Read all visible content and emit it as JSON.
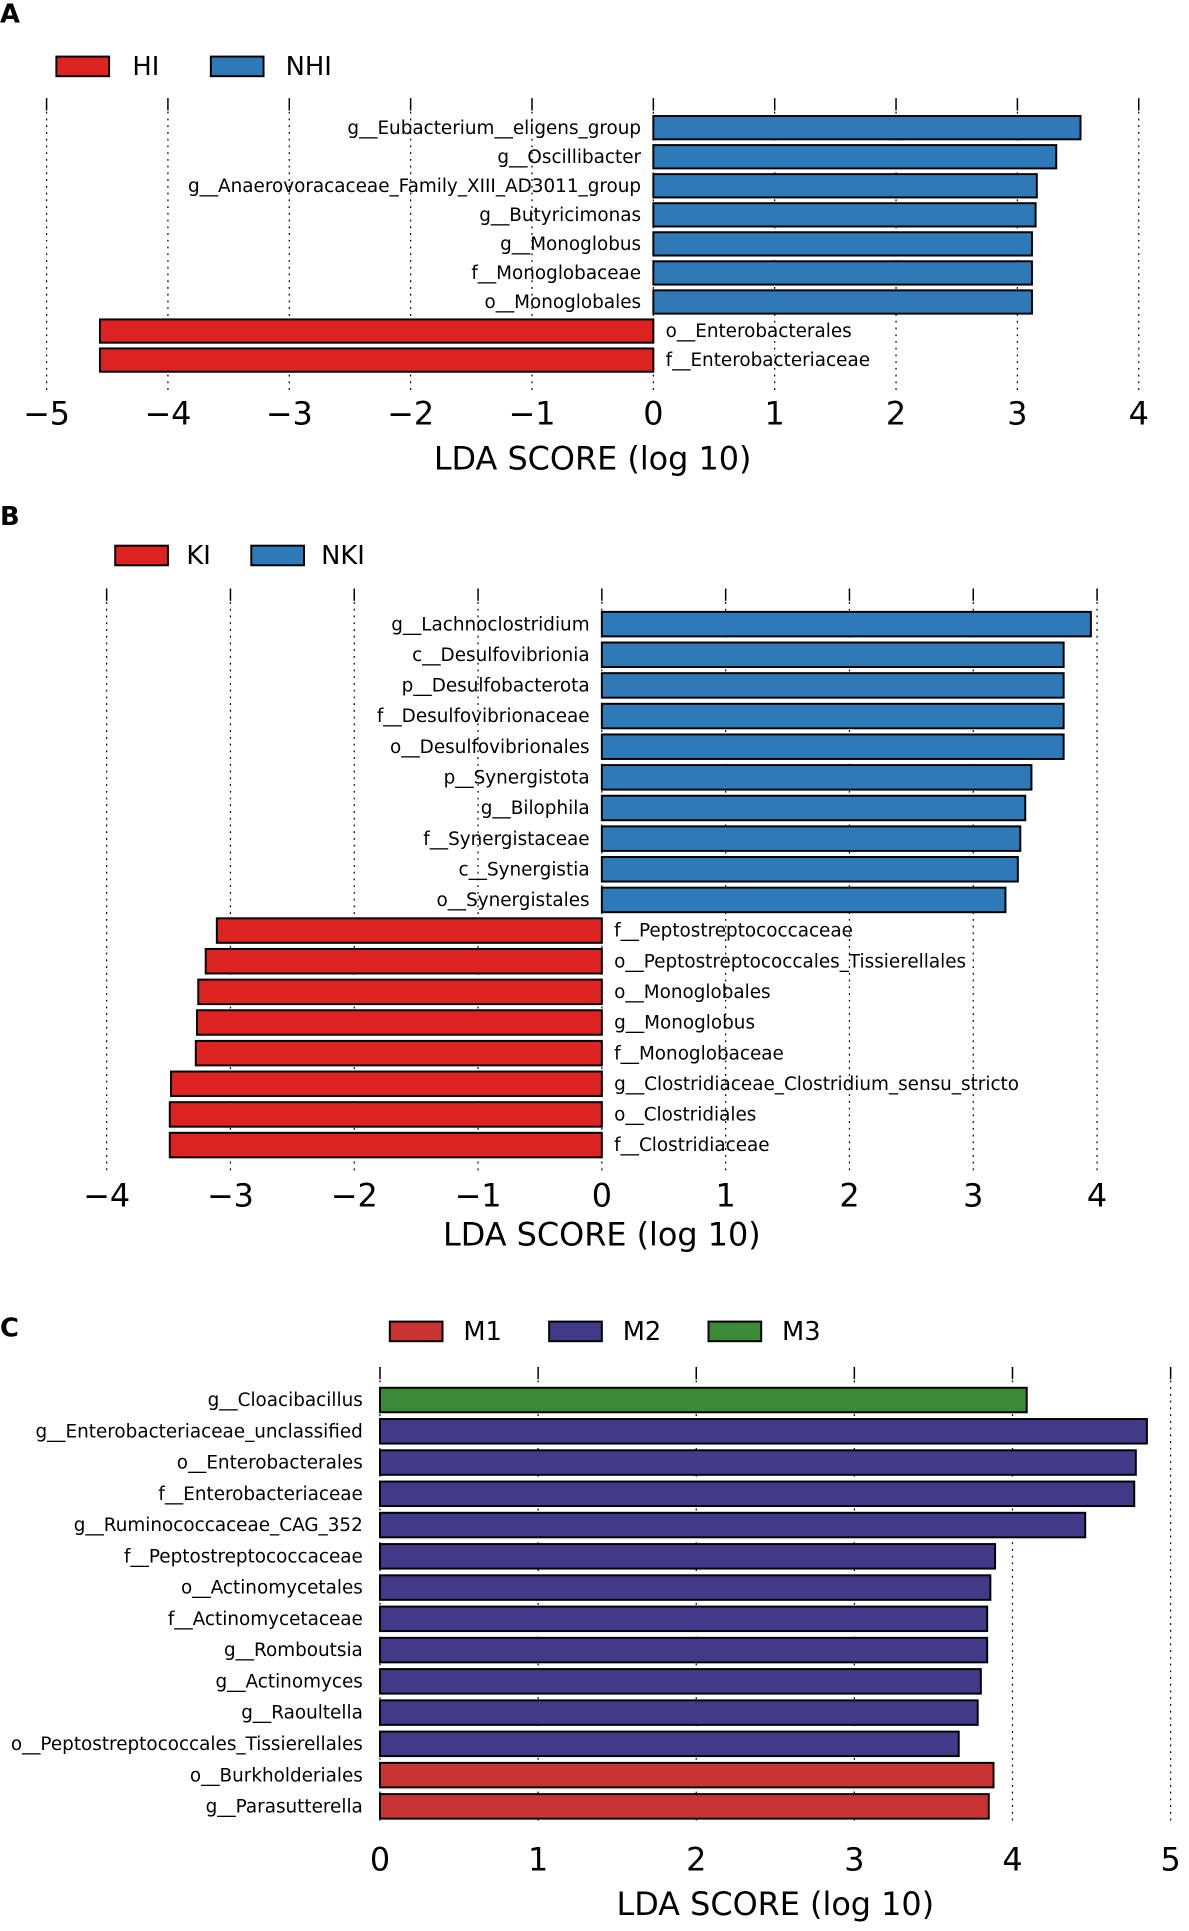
{
  "chart_data": [
    {
      "type": "bar",
      "orientation": "horizontal",
      "panel": "A",
      "xlabel": "LDA SCORE (log 10)",
      "xlim": [
        -5,
        4
      ],
      "xticks": [
        "−5",
        "−4",
        "−3",
        "−2",
        "−1",
        "0",
        "1",
        "2",
        "3",
        "4"
      ],
      "grid": true,
      "legend_position": "top-left",
      "legend": [
        {
          "name": "HI",
          "color": "#dd2222"
        },
        {
          "name": "NHI",
          "color": "#2e7ab8"
        }
      ],
      "categories": [
        "g__Eubacterium__eligens_group",
        "g__Oscillibacter",
        "g__Anaerovoracaceae_Family_XIII_AD3011_group",
        "g__Butyricimonas",
        "g__Monoglobus",
        "f__Monoglobaceae",
        "o__Monoglobales",
        "o__Enterobacterales",
        "f__Enterobacteriaceae"
      ],
      "values": [
        3.52,
        3.32,
        3.16,
        3.15,
        3.12,
        3.12,
        3.12,
        -4.56,
        -4.56
      ],
      "groups": [
        "NHI",
        "NHI",
        "NHI",
        "NHI",
        "NHI",
        "NHI",
        "NHI",
        "HI",
        "HI"
      ]
    },
    {
      "type": "bar",
      "orientation": "horizontal",
      "panel": "B",
      "xlabel": "LDA SCORE (log 10)",
      "xlim": [
        -4,
        4
      ],
      "xticks": [
        "−4",
        "−3",
        "−2",
        "−1",
        "0",
        "1",
        "2",
        "3",
        "4"
      ],
      "grid": true,
      "legend_position": "top-left",
      "legend": [
        {
          "name": "KI",
          "color": "#dd2222"
        },
        {
          "name": "NKI",
          "color": "#2e7ab8"
        }
      ],
      "categories": [
        "g__Lachnoclostridium",
        "c__Desulfovibrionia",
        "p__Desulfobacterota",
        "f__Desulfovibrionaceae",
        "o__Desulfovibrionales",
        "p__Synergistota",
        "g__Bilophila",
        "f__Synergistaceae",
        "c__Synergistia",
        "o__Synergistales",
        "f__Peptostreptococcaceae",
        "o__Peptostreptococcales_Tissierellales",
        "o__Monoglobales",
        "g__Monoglobus",
        "f__Monoglobaceae",
        "g__Clostridiaceae_Clostridium_sensu_stricto",
        "o__Clostridiales",
        "f__Clostridiaceae"
      ],
      "values": [
        3.95,
        3.73,
        3.73,
        3.73,
        3.73,
        3.47,
        3.42,
        3.38,
        3.36,
        3.26,
        -3.11,
        -3.2,
        -3.26,
        -3.27,
        -3.28,
        -3.48,
        -3.49,
        -3.49
      ],
      "groups": [
        "NKI",
        "NKI",
        "NKI",
        "NKI",
        "NKI",
        "NKI",
        "NKI",
        "NKI",
        "NKI",
        "NKI",
        "KI",
        "KI",
        "KI",
        "KI",
        "KI",
        "KI",
        "KI",
        "KI"
      ]
    },
    {
      "type": "bar",
      "orientation": "horizontal",
      "panel": "C",
      "xlabel": "LDA SCORE (log 10)",
      "xlim": [
        0,
        5
      ],
      "xticks": [
        "0",
        "1",
        "2",
        "3",
        "4",
        "5"
      ],
      "grid": true,
      "legend_position": "top",
      "legend": [
        {
          "name": "M1",
          "color": "#c83434"
        },
        {
          "name": "M2",
          "color": "#403a88"
        },
        {
          "name": "M3",
          "color": "#3c8a38"
        }
      ],
      "categories": [
        "g__Cloacibacillus",
        "g__Enterobacteriaceae_unclassified",
        "o__Enterobacterales",
        "f__Enterobacteriaceae",
        "g__Ruminococcaceae_CAG_352",
        "f__Peptostreptococcaceae",
        "o__Actinomycetales",
        "f__Actinomycetaceae",
        "g__Romboutsia",
        "g__Actinomyces",
        "g__Raoultella",
        "o__Peptostreptococcales_Tissierellales",
        "o__Burkholderiales",
        "g__Parasutterella"
      ],
      "values": [
        4.09,
        4.85,
        4.78,
        4.77,
        4.46,
        3.89,
        3.86,
        3.84,
        3.84,
        3.8,
        3.78,
        3.66,
        3.88,
        3.85
      ],
      "groups": [
        "M3",
        "M2",
        "M2",
        "M2",
        "M2",
        "M2",
        "M2",
        "M2",
        "M2",
        "M2",
        "M2",
        "M2",
        "M1",
        "M1"
      ]
    }
  ]
}
